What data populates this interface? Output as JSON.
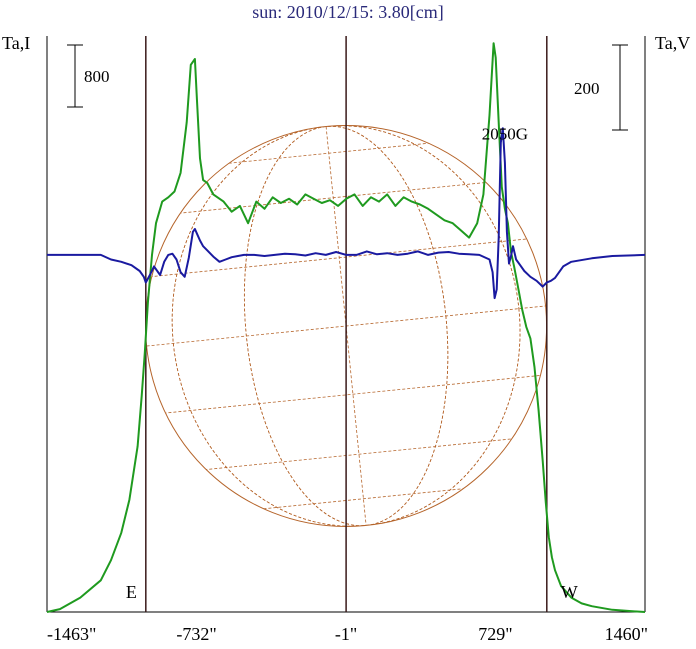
{
  "title": "sun: 2010/12/15: 3.80[cm]",
  "chart_data": {
    "type": "line",
    "title": "sun: 2010/12/15: 3.80[cm]",
    "left_axis_label": "Ta,I",
    "right_axis_label": "Ta,V",
    "left_scale_bar_label": "800",
    "right_scale_bar_label": "200",
    "x_tick_labels": [
      "-1463\"",
      "-732\"",
      "-1\"",
      "729\"",
      "1460\""
    ],
    "x_tick_values": [
      -1463,
      -732,
      -1,
      729,
      1460
    ],
    "xlim": [
      -1463,
      1460
    ],
    "ylim_left": [
      0,
      4000
    ],
    "ylim_right": [
      -620,
      380
    ],
    "limb_labels": {
      "east": "E",
      "west": "W"
    },
    "limb_x": [
      -980,
      980
    ],
    "center_x": -1,
    "solar_radius_arcsec": 980,
    "annotations": [
      {
        "text": "2050G",
        "x": 775,
        "y_right": 200
      }
    ],
    "grid": false,
    "series": [
      {
        "name": "Ta,I",
        "axis": "left",
        "color": "#1f9a1f",
        "x": [
          -1463,
          -1400,
          -1300,
          -1200,
          -1150,
          -1100,
          -1060,
          -1020,
          -1000,
          -985,
          -970,
          -950,
          -930,
          -900,
          -870,
          -840,
          -810,
          -780,
          -760,
          -740,
          -730,
          -715,
          -700,
          -680,
          -650,
          -600,
          -560,
          -520,
          -480,
          -440,
          -400,
          -360,
          -320,
          -280,
          -240,
          -200,
          -160,
          -120,
          -80,
          -40,
          0,
          40,
          80,
          120,
          160,
          200,
          240,
          280,
          320,
          360,
          400,
          440,
          480,
          520,
          560,
          600,
          640,
          670,
          700,
          720,
          730,
          745,
          760,
          775,
          790,
          805,
          820,
          840,
          860,
          880,
          900,
          920,
          940,
          960,
          975,
          990,
          1005,
          1020,
          1050,
          1100,
          1150,
          1200,
          1300,
          1400,
          1460
        ],
        "y": [
          0,
          20,
          100,
          220,
          360,
          550,
          780,
          1150,
          1500,
          1800,
          2150,
          2480,
          2700,
          2850,
          2880,
          2920,
          3050,
          3400,
          3800,
          3840,
          3550,
          3150,
          3000,
          2980,
          2900,
          2850,
          2780,
          2820,
          2700,
          2850,
          2800,
          2880,
          2840,
          2870,
          2830,
          2900,
          2870,
          2840,
          2860,
          2820,
          2870,
          2900,
          2820,
          2880,
          2850,
          2900,
          2820,
          2880,
          2850,
          2830,
          2800,
          2760,
          2720,
          2700,
          2650,
          2600,
          2700,
          2900,
          3450,
          3950,
          3850,
          3400,
          2950,
          2800,
          2700,
          2500,
          2400,
          2250,
          2100,
          1980,
          1900,
          1700,
          1400,
          1050,
          760,
          520,
          380,
          290,
          180,
          100,
          60,
          40,
          15,
          5,
          0
        ]
      },
      {
        "name": "Ta,V",
        "axis": "right",
        "color": "#1a1aa0",
        "x": [
          -1463,
          -1300,
          -1200,
          -1150,
          -1100,
          -1050,
          -1010,
          -990,
          -980,
          -960,
          -940,
          -910,
          -890,
          -870,
          -850,
          -830,
          -810,
          -790,
          -770,
          -750,
          -740,
          -728,
          -715,
          -700,
          -680,
          -650,
          -620,
          -590,
          -560,
          -530,
          -500,
          -450,
          -400,
          -350,
          -300,
          -250,
          -200,
          -150,
          -100,
          -50,
          0,
          50,
          100,
          150,
          200,
          250,
          300,
          350,
          400,
          450,
          500,
          550,
          600,
          650,
          700,
          715,
          725,
          735,
          745,
          755,
          765,
          775,
          785,
          795,
          805,
          815,
          830,
          850,
          870,
          900,
          930,
          960,
          980,
          1000,
          1020,
          1060,
          1100,
          1200,
          1300,
          1460
        ],
        "y": [
          0,
          0,
          0,
          -8,
          -12,
          -18,
          -28,
          -38,
          -48,
          -35,
          -20,
          -35,
          -12,
          0,
          2,
          -8,
          -30,
          -38,
          -5,
          40,
          45,
          35,
          25,
          15,
          8,
          -3,
          -12,
          -8,
          -4,
          -2,
          0,
          0,
          -2,
          0,
          2,
          1,
          -1,
          3,
          0,
          5,
          0,
          0,
          6,
          1,
          3,
          0,
          2,
          6,
          0,
          4,
          5,
          2,
          1,
          0,
          -8,
          -30,
          -75,
          -60,
          30,
          195,
          220,
          160,
          40,
          -15,
          -2,
          15,
          -8,
          -18,
          -28,
          -38,
          -45,
          -55,
          -48,
          -45,
          -40,
          -20,
          -12,
          -6,
          -2,
          0
        ]
      }
    ]
  }
}
